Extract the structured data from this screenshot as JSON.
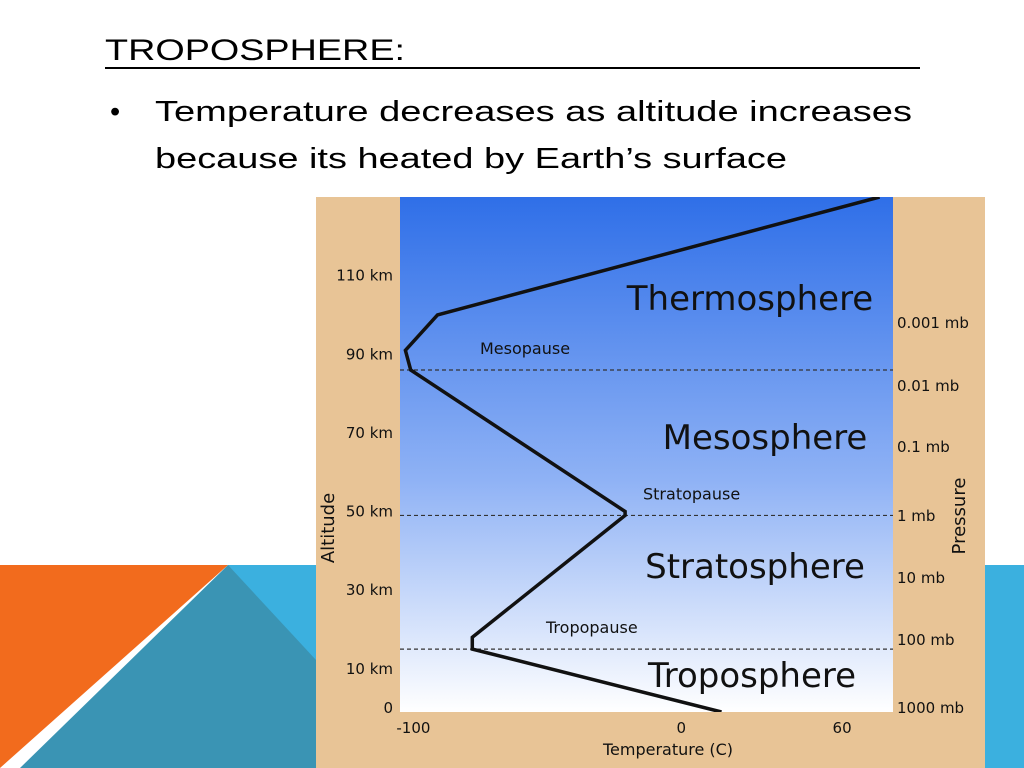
{
  "header": {
    "title": "TROPOSPHERE:"
  },
  "bullets": [
    {
      "marker": "•",
      "lines": [
        "Temperature decreases as altitude increases",
        "because its heated by Earth’s surface"
      ]
    }
  ],
  "figure": {
    "chart_data": {
      "type": "line",
      "x_label": "Temperature (C)",
      "y_label": "Altitude",
      "y2_label": "Pressure",
      "xlim": [
        -105,
        79
      ],
      "ylim": [
        -1,
        130
      ],
      "xticks": [
        -100,
        0,
        60
      ],
      "yticks": [
        0,
        {
          "value": 10,
          "label": "10 km"
        },
        {
          "value": 30,
          "label": "30 km"
        },
        {
          "value": 50,
          "label": "50 km"
        },
        {
          "value": 70,
          "label": "70 km"
        },
        {
          "value": 90,
          "label": "90 km"
        },
        {
          "value": 110,
          "label": "110 km"
        }
      ],
      "pressure_labels": [
        "0.001 mb",
        "0.01 mb",
        "0.1 mb",
        "1 mb",
        "10 mb",
        "100 mb",
        "1000 mb"
      ],
      "layers": [
        "Thermosphere",
        "Mesosphere",
        "Stratosphere",
        "Troposphere"
      ],
      "pauses": [
        {
          "name": "Mesopause",
          "altitude": 86
        },
        {
          "name": "Stratopause",
          "altitude": 49
        },
        {
          "name": "Tropopause",
          "altitude": 15
        }
      ],
      "series": [
        {
          "color": "#111111",
          "x": [
            15,
            -78,
            -78,
            -21,
            -21,
            -101,
            -103,
            -91,
            74
          ],
          "values": [
            -1,
            15,
            18,
            49,
            50,
            86,
            91,
            100,
            130
          ]
        }
      ]
    }
  }
}
